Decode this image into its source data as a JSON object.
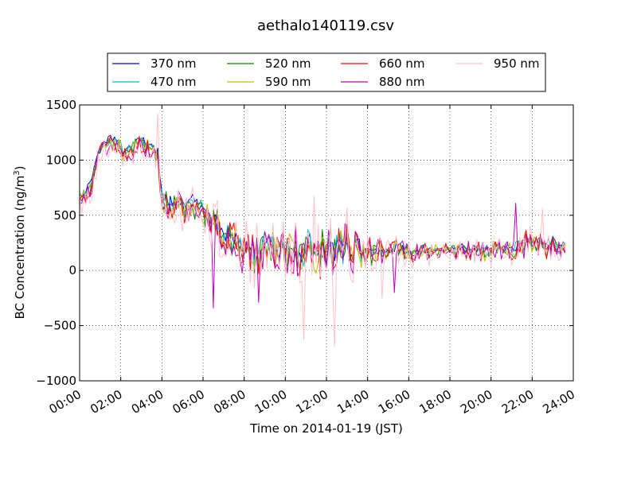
{
  "chart_data": {
    "type": "line",
    "title": "aethalo140119.csv",
    "xlabel": "Time on 2014-01-19 (JST)",
    "ylabel_main": "BC Concentration (ng/m",
    "ylabel_sup": "3",
    "ylabel_close": ")",
    "xlim": [
      0,
      24
    ],
    "ylim": [
      -1000,
      1500
    ],
    "x_ticks": [
      0,
      2,
      4,
      6,
      8,
      10,
      12,
      14,
      16,
      18,
      20,
      22,
      24
    ],
    "x_tick_labels": [
      "00:00",
      "02:00",
      "04:00",
      "06:00",
      "08:00",
      "10:00",
      "12:00",
      "14:00",
      "16:00",
      "18:00",
      "20:00",
      "22:00",
      "24:00"
    ],
    "y_ticks": [
      -1000,
      -500,
      0,
      500,
      1000,
      1500
    ],
    "y_tick_labels": [
      "−1000",
      "−500",
      "0",
      "500",
      "1000",
      "1500"
    ],
    "grid": true,
    "legend_position": "top",
    "x_step_hours": 0.1,
    "x_end_hours": 23.6,
    "series": [
      {
        "name": "370 nm",
        "color": "#0000ff",
        "ampScale": 0.7,
        "offset": 20,
        "seed": 1
      },
      {
        "name": "470 nm",
        "color": "#00bfbf",
        "ampScale": 0.85,
        "offset": 5,
        "seed": 2
      },
      {
        "name": "520 nm",
        "color": "#008000",
        "ampScale": 1.0,
        "offset": -10,
        "seed": 3
      },
      {
        "name": "590 nm",
        "color": "#bfbf00",
        "ampScale": 1.05,
        "offset": -15,
        "seed": 4
      },
      {
        "name": "660 nm",
        "color": "#ff0000",
        "ampScale": 1.15,
        "offset": -20,
        "seed": 5
      },
      {
        "name": "880 nm",
        "color": "#bf00bf",
        "ampScale": 1.3,
        "offset": -30,
        "seed": 6
      },
      {
        "name": "950 nm",
        "color": "#ffc0cb",
        "ampScale": 1.6,
        "offset": -60,
        "seed": 7
      }
    ],
    "baseline": [
      [
        0.0,
        660
      ],
      [
        0.3,
        680
      ],
      [
        0.6,
        840
      ],
      [
        0.9,
        1050
      ],
      [
        1.2,
        1130
      ],
      [
        1.5,
        1180
      ],
      [
        1.8,
        1150
      ],
      [
        2.1,
        1080
      ],
      [
        2.4,
        1100
      ],
      [
        2.7,
        1150
      ],
      [
        3.0,
        1180
      ],
      [
        3.3,
        1150
      ],
      [
        3.6,
        1080
      ],
      [
        3.85,
        1020
      ],
      [
        3.95,
        620
      ],
      [
        4.3,
        560
      ],
      [
        4.8,
        590
      ],
      [
        5.3,
        600
      ],
      [
        5.8,
        570
      ],
      [
        6.2,
        520
      ],
      [
        6.5,
        420
      ],
      [
        6.9,
        330
      ],
      [
        7.5,
        280
      ],
      [
        8.0,
        230
      ],
      [
        8.5,
        170
      ],
      [
        9.0,
        200
      ],
      [
        9.5,
        180
      ],
      [
        10.0,
        190
      ],
      [
        11.0,
        200
      ],
      [
        12.0,
        190
      ],
      [
        13.0,
        200
      ],
      [
        14.0,
        180
      ],
      [
        15.0,
        180
      ],
      [
        16.0,
        170
      ],
      [
        17.0,
        180
      ],
      [
        18.0,
        190
      ],
      [
        19.0,
        180
      ],
      [
        20.0,
        190
      ],
      [
        21.0,
        220
      ],
      [
        22.0,
        250
      ],
      [
        23.0,
        220
      ],
      [
        23.6,
        210
      ]
    ],
    "noise_envelope": [
      [
        0.0,
        70
      ],
      [
        3.8,
        80
      ],
      [
        4.0,
        140
      ],
      [
        6.3,
        120
      ],
      [
        6.6,
        170
      ],
      [
        8.5,
        180
      ],
      [
        10.5,
        190
      ],
      [
        12.5,
        200
      ],
      [
        14.0,
        130
      ],
      [
        15.5,
        90
      ],
      [
        17.5,
        65
      ],
      [
        20.0,
        80
      ],
      [
        21.0,
        105
      ],
      [
        23.6,
        90
      ]
    ],
    "spikes": [
      {
        "x": 3.8,
        "series": "950 nm",
        "y": 1420
      },
      {
        "x": 6.5,
        "series": "880 nm",
        "y": -340
      },
      {
        "x": 8.7,
        "series": "880 nm",
        "y": -290
      },
      {
        "x": 10.3,
        "series": "950 nm",
        "y": -50
      },
      {
        "x": 10.9,
        "series": "950 nm",
        "y": -630
      },
      {
        "x": 11.4,
        "series": "950 nm",
        "y": 670
      },
      {
        "x": 12.4,
        "series": "950 nm",
        "y": -690
      },
      {
        "x": 13.0,
        "series": "950 nm",
        "y": 570
      },
      {
        "x": 14.7,
        "series": "950 nm",
        "y": -250
      },
      {
        "x": 15.3,
        "series": "880 nm",
        "y": -200
      },
      {
        "x": 21.2,
        "series": "880 nm",
        "y": 610
      },
      {
        "x": 22.5,
        "series": "950 nm",
        "y": 560
      }
    ]
  }
}
